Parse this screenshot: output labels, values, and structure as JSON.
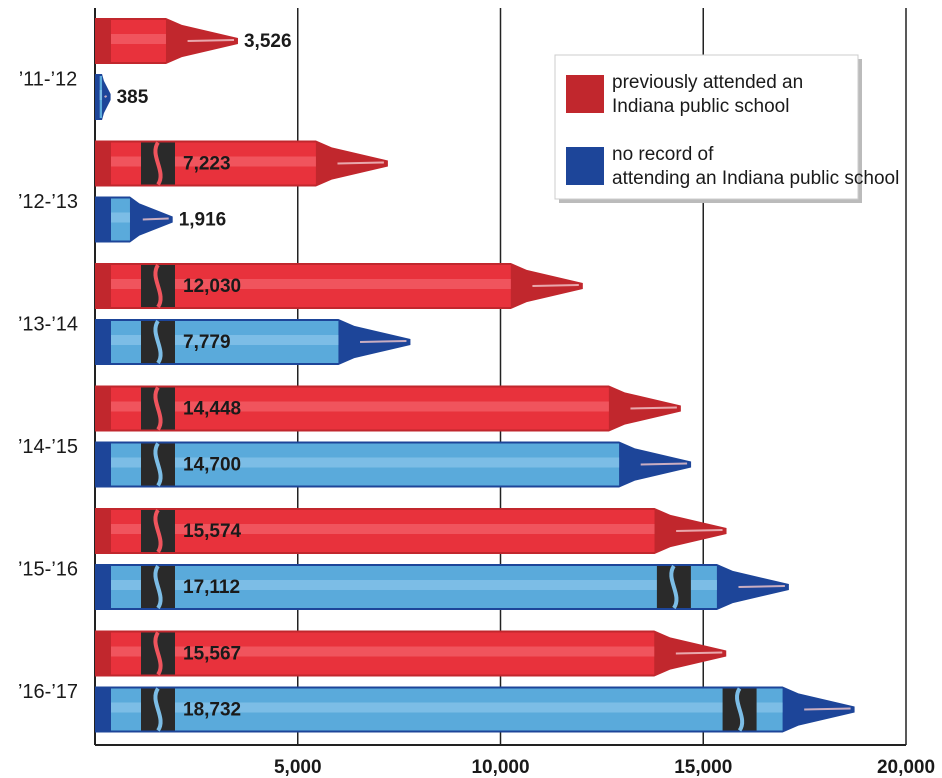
{
  "chart_data": {
    "type": "crayon-bar",
    "categories": [
      "’11-’12",
      "’12-’13",
      "’13-’14",
      "’14-’15",
      "’15-’16",
      "’16-’17"
    ],
    "series": [
      {
        "name": "previously attended an Indiana public school",
        "color": "#c1272d",
        "values": [
          3526,
          7223,
          12030,
          14448,
          15574,
          15567
        ],
        "value_labels": [
          "3,526",
          "7,223",
          "12,030",
          "14,448",
          "15,574",
          "15,567"
        ]
      },
      {
        "name": "no record of attending an Indiana public school",
        "color": "#1d4599",
        "values": [
          385,
          1916,
          7779,
          14700,
          17112,
          18732
        ],
        "value_labels": [
          "385",
          "1,916",
          "7,779",
          "14,700",
          "17,112",
          "18,732"
        ]
      }
    ],
    "xlim": [
      0,
      20000
    ],
    "xticks": [
      {
        "value": 5000,
        "label": "5,000"
      },
      {
        "value": 10000,
        "label": "10,000"
      },
      {
        "value": 15000,
        "label": "15,000"
      },
      {
        "value": 20000,
        "label": "20,000"
      }
    ],
    "grid": true
  }
}
